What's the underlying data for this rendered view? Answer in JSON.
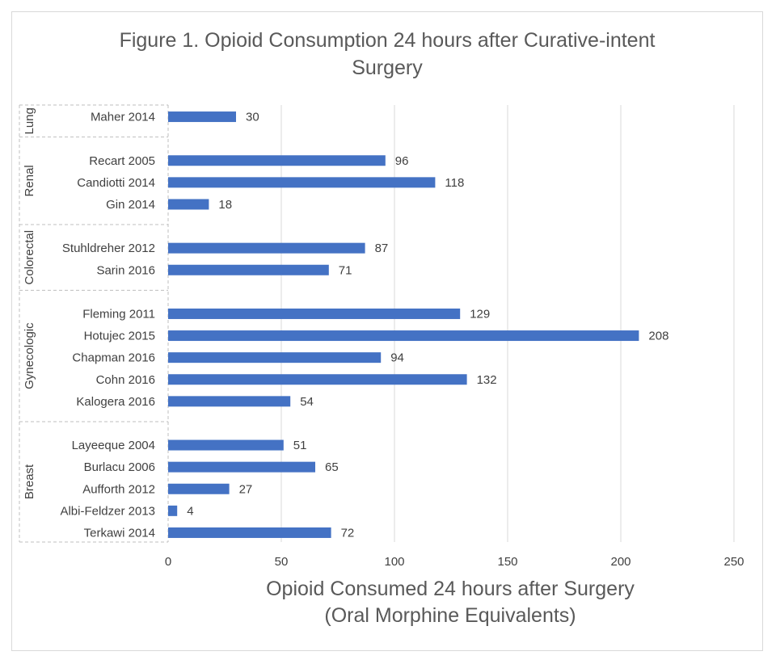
{
  "chart_data": {
    "type": "bar",
    "orientation": "horizontal",
    "title": [
      "Figure 1. Opioid Consumption  24 hours after Curative-intent",
      "Surgery"
    ],
    "xlabel": [
      "Opioid Consumed  24 hours after Surgery",
      "(Oral Morphine  Equivalents)"
    ],
    "ylabel": "",
    "xlim": [
      0,
      250
    ],
    "xticks": [
      0,
      50,
      100,
      150,
      200,
      250
    ],
    "grid": true,
    "legend": "none",
    "bar_color": "#4472c4",
    "groups": [
      {
        "name": "Lung",
        "categories": [
          "Maher 2014"
        ],
        "values": [
          30
        ]
      },
      {
        "name": "Renal",
        "categories": [
          "Recart 2005",
          "Candiotti 2014",
          "Gin 2014"
        ],
        "values": [
          96,
          118,
          18
        ]
      },
      {
        "name": "Colorectal",
        "categories": [
          "Stuhldreher 2012",
          "Sarin 2016"
        ],
        "values": [
          87,
          71
        ]
      },
      {
        "name": "Gynecologic",
        "categories": [
          "Fleming 2011",
          "Hotujec 2015",
          "Chapman 2016",
          "Cohn 2016",
          "Kalogera 2016"
        ],
        "values": [
          129,
          208,
          94,
          132,
          54
        ]
      },
      {
        "name": "Breast",
        "categories": [
          "Layeeque 2004",
          "Burlacu 2006",
          "Aufforth 2012",
          "Albi-Feldzer 2013",
          "Terkawi 2014"
        ],
        "values": [
          51,
          65,
          27,
          4,
          72
        ]
      }
    ]
  }
}
